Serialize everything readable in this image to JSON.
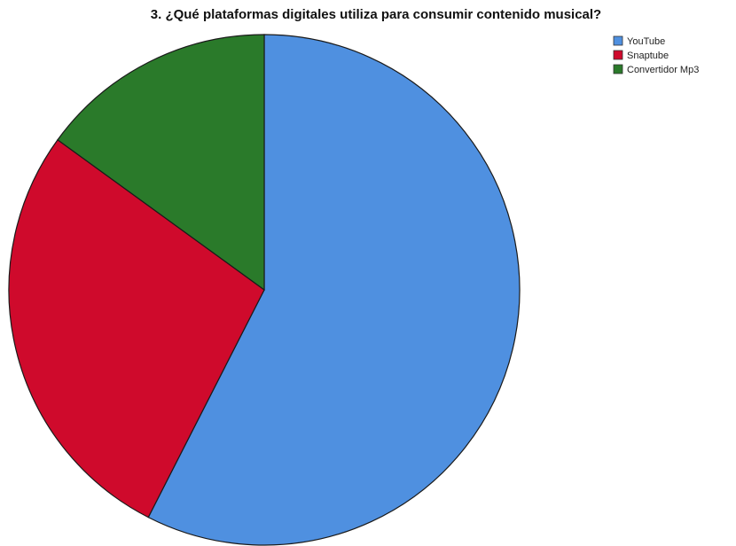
{
  "chart_data": {
    "type": "pie",
    "title": "3. ¿Qué plataformas digitales utiliza para consumir contenido musical?",
    "categories": [
      "YouTube",
      "Snaptube",
      "Convertidor Mp3"
    ],
    "values": [
      57.5,
      27.5,
      15.0
    ],
    "unit": "%",
    "colors": [
      "#4f90e0",
      "#cf0a2c",
      "#2a7a2a"
    ],
    "start_angle_deg": 0,
    "direction": "clockwise",
    "legend": {
      "placement": "top-right",
      "entries": [
        "YouTube",
        "Snaptube",
        "Convertidor Mp3"
      ]
    }
  }
}
